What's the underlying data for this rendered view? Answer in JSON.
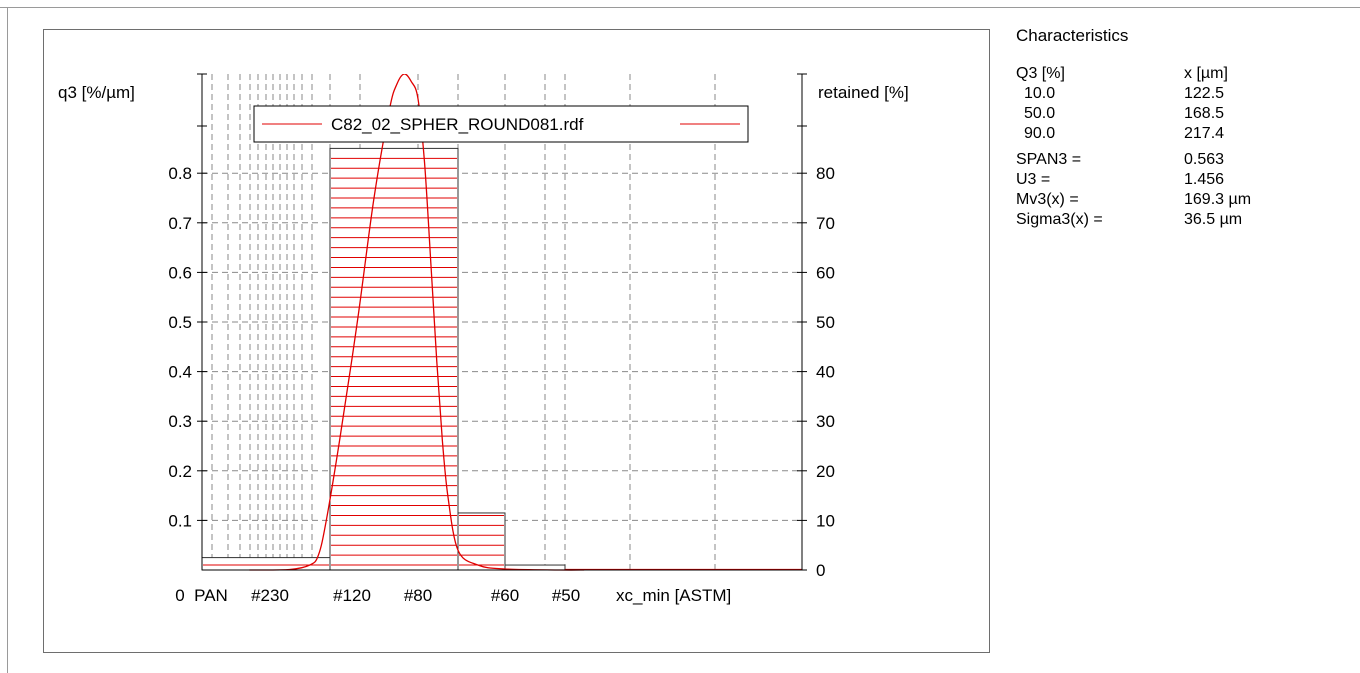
{
  "chart_data": {
    "type": "bar",
    "title": "",
    "xlabel": "xc_min [ASTM]",
    "ylabel_left": "q3 [%/µm]",
    "ylabel_right": "retained [%]",
    "ylim_left": [
      0,
      1.0
    ],
    "ylim_right": [
      0,
      100
    ],
    "y_ticks_left": [
      "0.1",
      "0.2",
      "0.3",
      "0.4",
      "0.5",
      "0.6",
      "0.7",
      "0.8"
    ],
    "y_ticks_right": [
      "0",
      "10",
      "20",
      "30",
      "40",
      "50",
      "60",
      "70",
      "80"
    ],
    "x_tick_labels": [
      "0",
      "PAN",
      "#230",
      "#120",
      "#80",
      "#60",
      "#50"
    ],
    "grid": true,
    "legend_position": "top",
    "series": [
      {
        "name": "C82_02_SPHER_ROUND081.rdf",
        "color": "#e00000",
        "bars": [
          {
            "from": "PAN",
            "to": "#120",
            "retained": 2.5
          },
          {
            "from": "#120",
            "to": "#60",
            "retained": 85.0
          },
          {
            "from": "#60",
            "to": "#50",
            "retained": 11.5
          },
          {
            "from": "#50",
            "to": "",
            "retained": 1.0
          }
        ],
        "density_curve": {
          "x_um": [
            60,
            80,
            100,
            110,
            120,
            130,
            140,
            150,
            160,
            165,
            170,
            175,
            180,
            190,
            200,
            210,
            220,
            230,
            250,
            270,
            300,
            350,
            400
          ],
          "q3": [
            0.0,
            0.001,
            0.01,
            0.03,
            0.1,
            0.26,
            0.5,
            0.75,
            0.93,
            0.98,
            1.0,
            0.985,
            0.95,
            0.82,
            0.62,
            0.42,
            0.26,
            0.15,
            0.04,
            0.01,
            0.002,
            0.0,
            0.0
          ]
        }
      }
    ]
  },
  "characteristics": {
    "title": "Characteristics",
    "col_q3": "Q3 [%]",
    "col_x": "x [µm]",
    "rows": [
      {
        "q3": "10.0",
        "x": "122.5"
      },
      {
        "q3": "50.0",
        "x": "168.5"
      },
      {
        "q3": "90.0",
        "x": "217.4"
      }
    ],
    "stats": [
      {
        "label": "SPAN3 =",
        "value": "0.563"
      },
      {
        "label": "U3 =",
        "value": "1.456"
      },
      {
        "label": "Mv3(x) =",
        "value": "169.3 µm"
      },
      {
        "label": "Sigma3(x) =",
        "value": "36.5 µm"
      }
    ]
  }
}
